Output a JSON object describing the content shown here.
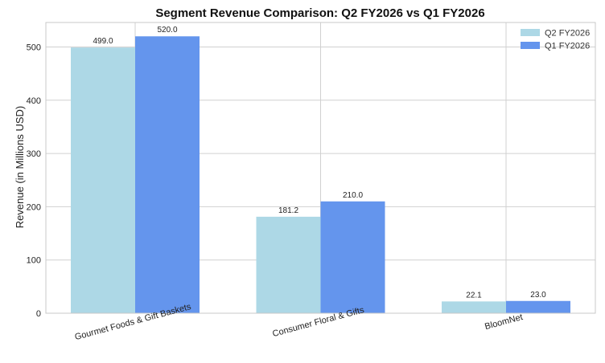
{
  "chart_data": {
    "type": "bar",
    "title": "Segment Revenue Comparison: Q2 FY2026 vs Q1 FY2026",
    "xlabel": "",
    "ylabel": "Revenue (in Millions USD)",
    "categories": [
      "Gourmet Foods & Gift Baskets",
      "Consumer Floral & Gifts",
      "BloomNet"
    ],
    "series": [
      {
        "name": "Q2 FY2026",
        "values": [
          499.0,
          181.2,
          22.1
        ],
        "color": "#add8e6"
      },
      {
        "name": "Q1 FY2026",
        "values": [
          520.0,
          210.0,
          23.0
        ],
        "color": "#6495ed"
      }
    ],
    "data_labels": [
      [
        "499.0",
        "181.2",
        "22.1"
      ],
      [
        "520.0",
        "210.0",
        "23.0"
      ]
    ],
    "ylim": [
      0,
      546
    ],
    "yticks": [
      0,
      100,
      200,
      300,
      400,
      500
    ],
    "grid": true,
    "legend_position": "top-right"
  }
}
